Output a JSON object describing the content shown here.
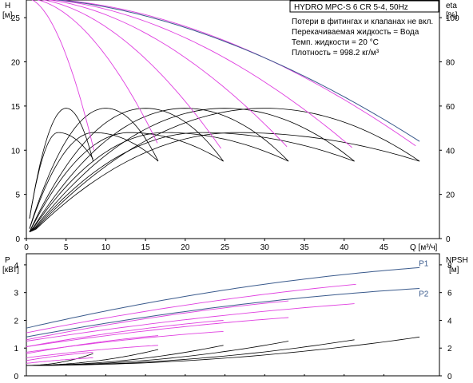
{
  "chart_data": [
    {
      "type": "line",
      "title": "HYDRO MPC-S 6 CR 5-4, 50Hz",
      "notes": [
        "Потери в фитингах и клапанах не вкл.",
        "Перекачиваемая жидкость = Вода",
        "Темп. жидкости = 20 °C",
        "Плотность = 998.2 кг/м³"
      ],
      "xlabel": "Q [м³/ч]",
      "ylabel_left": [
        "H",
        "[м]"
      ],
      "ylabel_right": [
        "eta",
        "[%]"
      ],
      "xlim": [
        0,
        52
      ],
      "ylim_left": [
        0,
        27
      ],
      "ylim_right": [
        0,
        108
      ],
      "xticks": [
        0,
        5,
        10,
        15,
        20,
        25,
        30,
        35,
        40,
        45
      ],
      "yticks_left": [
        0,
        5,
        10,
        15,
        20,
        25
      ],
      "yticks_right": [
        0,
        20,
        40,
        60,
        80,
        100
      ],
      "grid": false,
      "colors": {
        "max_curve": "#3a5a8c",
        "speed_curve": "#e040e0",
        "efficiency": "#000000"
      },
      "head_max": {
        "shutoff_head": 27.2,
        "max_flow": 49.5,
        "end_head": 11.0
      },
      "head_speed_curves": [
        {
          "end_flow": 8.5,
          "end_head": 10.0
        },
        {
          "end_flow": 16.5,
          "end_head": 10.8
        },
        {
          "end_flow": 24.5,
          "end_head": 10.2
        },
        {
          "end_flow": 32.8,
          "end_head": 10.4
        },
        {
          "end_flow": 41.0,
          "end_head": 10.3
        },
        {
          "end_flow": 49.0,
          "end_head": 10.5
        }
      ],
      "efficiency_upper": [
        {
          "peak_flow": 5.0,
          "peak": 59,
          "end_flow": 8.4,
          "end_eta": 35
        },
        {
          "peak_flow": 10.0,
          "peak": 59,
          "end_flow": 16.6,
          "end_eta": 35
        },
        {
          "peak_flow": 15.0,
          "peak": 59,
          "end_flow": 24.8,
          "end_eta": 35
        },
        {
          "peak_flow": 20.0,
          "peak": 59,
          "end_flow": 33.0,
          "end_eta": 35
        },
        {
          "peak_flow": 25.0,
          "peak": 59,
          "end_flow": 41.3,
          "end_eta": 35
        },
        {
          "peak_flow": 30.0,
          "peak": 59,
          "end_flow": 49.5,
          "end_eta": 35
        }
      ],
      "efficiency_lower": [
        {
          "peak_flow": 4.0,
          "peak": 48,
          "end_flow": 8.4,
          "end_eta": 36
        },
        {
          "peak_flow": 8.5,
          "peak": 48,
          "end_flow": 16.6,
          "end_eta": 35
        },
        {
          "peak_flow": 13.0,
          "peak": 48,
          "end_flow": 24.8,
          "end_eta": 35
        },
        {
          "peak_flow": 17.5,
          "peak": 48,
          "end_flow": 33.0,
          "end_eta": 35
        },
        {
          "peak_flow": 22.0,
          "peak": 48,
          "end_flow": 41.3,
          "end_eta": 35
        },
        {
          "peak_flow": 26.5,
          "peak": 48,
          "end_flow": 49.5,
          "end_eta": 35
        }
      ]
    },
    {
      "type": "line",
      "ylabel_left": [
        "P",
        "[кВт]"
      ],
      "ylabel_right": [
        "NPSH",
        "[м]"
      ],
      "xlim": [
        0,
        52
      ],
      "ylim_left": [
        0,
        4.4
      ],
      "ylim_right": [
        0,
        8.8
      ],
      "yticks_left": [
        0,
        1,
        2,
        3,
        4
      ],
      "yticks_right": [
        0,
        2,
        4,
        6,
        8
      ],
      "grid": false,
      "series": [
        {
          "name": "P1",
          "x_end": 49.5,
          "start": 1.72,
          "end": 3.9,
          "color": "#3a5a8c"
        },
        {
          "name": "P2",
          "x_end": 49.5,
          "start": 1.4,
          "end": 3.15,
          "color": "#3a5a8c"
        }
      ],
      "power_speed_curves": [
        {
          "x_end": 41.5,
          "start": 1.55,
          "end": 3.3
        },
        {
          "x_end": 41.3,
          "start": 1.25,
          "end": 2.6
        },
        {
          "x_end": 33.0,
          "start": 1.3,
          "end": 2.7
        },
        {
          "x_end": 33.0,
          "start": 1.05,
          "end": 2.1
        },
        {
          "x_end": 24.8,
          "start": 1.05,
          "end": 2.0
        },
        {
          "x_end": 24.8,
          "start": 0.85,
          "end": 1.6
        },
        {
          "x_end": 16.6,
          "start": 0.8,
          "end": 1.45
        },
        {
          "x_end": 16.6,
          "start": 0.65,
          "end": 1.1
        },
        {
          "x_end": 8.4,
          "start": 0.55,
          "end": 0.85
        },
        {
          "x_end": 8.4,
          "start": 0.45,
          "end": 0.65
        }
      ],
      "npsh_curves": [
        {
          "x_end": 8.4,
          "end": 1.6
        },
        {
          "x_end": 16.6,
          "end": 1.9
        },
        {
          "x_end": 24.8,
          "end": 2.2
        },
        {
          "x_end": 33.0,
          "end": 2.5
        },
        {
          "x_end": 41.3,
          "end": 2.6
        },
        {
          "x_end": 49.5,
          "end": 2.8
        }
      ],
      "npsh_start": 0.75
    }
  ]
}
